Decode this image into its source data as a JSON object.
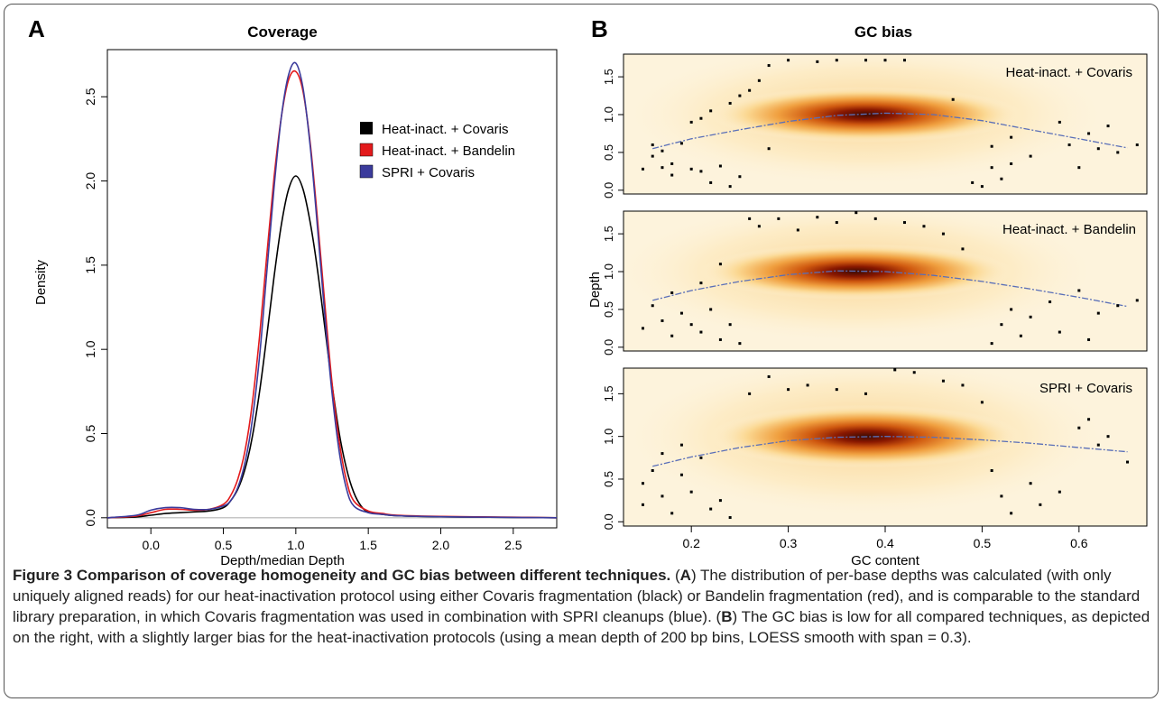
{
  "panel_a": {
    "label": "A",
    "title": "Coverage",
    "xlabel": "Depth/median Depth",
    "ylabel": "Density",
    "legend": [
      {
        "name": "Heat-inact. + Covaris",
        "color": "#000000"
      },
      {
        "name": "Heat-inact. + Bandelin",
        "color": "#e31a1c"
      },
      {
        "name": "SPRI + Covaris",
        "color": "#3b3b9c"
      }
    ]
  },
  "panel_b": {
    "label": "B",
    "title": "GC bias",
    "xlabel": "GC content",
    "ylabel": "Depth",
    "subplots": [
      {
        "label": "Heat-inact. + Covaris"
      },
      {
        "label": "Heat-inact. + Bandelin"
      },
      {
        "label": "SPRI + Covaris"
      }
    ]
  },
  "caption": {
    "fig_title": "Figure 3 Comparison of coverage homogeneity and GC bias between different techniques.",
    "open_a": "(",
    "a": "A",
    "text_a": ") The distribution of per-base depths was calculated (with only uniquely aligned reads) for our heat-inactivation protocol using either Covaris fragmentation (black) or Bandelin fragmentation (red), and is comparable to the standard library preparation, in which Covaris fragmentation was used in combination with SPRI cleanups (blue). (",
    "b": "B",
    "text_b": ") The GC bias is low for all compared techniques, as depicted on the right, with a slightly larger bias for the heat-inactivation protocols (using a mean depth of 200 bp bins, LOESS smooth with span = 0.3)."
  },
  "chart_data": [
    {
      "type": "line",
      "panel": "A",
      "title": "Coverage",
      "xlabel": "Depth/median Depth",
      "ylabel": "Density",
      "xlim": [
        -0.3,
        2.8
      ],
      "ylim": [
        0,
        2.7
      ],
      "xticks": [
        "0.0",
        "0.5",
        "1.0",
        "1.5",
        "2.0",
        "2.5"
      ],
      "yticks": [
        "0.0",
        "0.5",
        "1.0",
        "1.5",
        "2.0",
        "2.5"
      ],
      "legend_position": "top-right",
      "series": [
        {
          "name": "Heat-inact. + Covaris",
          "color": "#000000",
          "x": [
            -0.3,
            -0.1,
            0.0,
            0.1,
            0.2,
            0.3,
            0.4,
            0.5,
            0.55,
            0.6,
            0.65,
            0.7,
            0.75,
            0.8,
            0.85,
            0.9,
            0.95,
            1.0,
            1.05,
            1.1,
            1.15,
            1.2,
            1.25,
            1.3,
            1.35,
            1.4,
            1.45,
            1.5,
            1.6,
            1.7,
            2.0,
            2.5,
            2.8
          ],
          "y": [
            0.0,
            0.005,
            0.015,
            0.025,
            0.03,
            0.035,
            0.04,
            0.06,
            0.1,
            0.17,
            0.29,
            0.48,
            0.75,
            1.08,
            1.43,
            1.74,
            1.95,
            2.03,
            1.95,
            1.75,
            1.47,
            1.13,
            0.79,
            0.5,
            0.29,
            0.15,
            0.07,
            0.035,
            0.02,
            0.012,
            0.006,
            0.002,
            0.0
          ]
        },
        {
          "name": "Heat-inact. + Bandelin",
          "color": "#e31a1c",
          "x": [
            -0.3,
            -0.1,
            0.0,
            0.1,
            0.2,
            0.3,
            0.4,
            0.5,
            0.55,
            0.6,
            0.65,
            0.7,
            0.75,
            0.8,
            0.85,
            0.9,
            0.95,
            1.0,
            1.05,
            1.1,
            1.15,
            1.2,
            1.25,
            1.3,
            1.35,
            1.4,
            1.5,
            1.6,
            1.7,
            2.0,
            2.5,
            2.8
          ],
          "y": [
            0.0,
            0.01,
            0.03,
            0.05,
            0.05,
            0.045,
            0.05,
            0.08,
            0.13,
            0.23,
            0.4,
            0.68,
            1.08,
            1.56,
            2.02,
            2.38,
            2.6,
            2.65,
            2.53,
            2.22,
            1.77,
            1.27,
            0.8,
            0.45,
            0.22,
            0.1,
            0.04,
            0.025,
            0.015,
            0.008,
            0.003,
            0.0
          ]
        },
        {
          "name": "SPRI + Covaris",
          "color": "#3b3b9c",
          "x": [
            -0.3,
            -0.1,
            0.0,
            0.1,
            0.2,
            0.3,
            0.4,
            0.5,
            0.55,
            0.6,
            0.65,
            0.7,
            0.75,
            0.8,
            0.85,
            0.9,
            0.95,
            1.0,
            1.05,
            1.1,
            1.15,
            1.2,
            1.25,
            1.3,
            1.35,
            1.4,
            1.5,
            1.6,
            1.7,
            2.0,
            2.5,
            2.8
          ],
          "y": [
            0.0,
            0.015,
            0.045,
            0.06,
            0.06,
            0.05,
            0.05,
            0.07,
            0.1,
            0.18,
            0.33,
            0.58,
            0.96,
            1.46,
            1.96,
            2.38,
            2.63,
            2.7,
            2.55,
            2.2,
            1.72,
            1.2,
            0.74,
            0.39,
            0.17,
            0.07,
            0.03,
            0.02,
            0.012,
            0.006,
            0.002,
            0.0
          ]
        }
      ]
    },
    {
      "type": "scatter",
      "panel": "B",
      "title": "GC bias",
      "xlabel": "GC content",
      "ylabel": "Depth",
      "xlim": [
        0.13,
        0.67
      ],
      "ylim": [
        -0.05,
        1.8
      ],
      "xticks": [
        "0.2",
        "0.3",
        "0.4",
        "0.5",
        "0.6"
      ],
      "yticks": [
        "0.0",
        "0.5",
        "1.0",
        "1.5"
      ],
      "note": "smoothed density scatter (heat colormap) with LOESS trend line",
      "series": [
        {
          "name": "Heat-inact. + Covaris",
          "density_center": {
            "x": 0.38,
            "y": 1.0
          },
          "loess_x": [
            0.16,
            0.2,
            0.25,
            0.3,
            0.35,
            0.4,
            0.45,
            0.5,
            0.55,
            0.6,
            0.65
          ],
          "loess_y": [
            0.55,
            0.68,
            0.8,
            0.91,
            0.99,
            1.02,
            1.0,
            0.92,
            0.8,
            0.68,
            0.56
          ],
          "outliers": [
            [
              0.15,
              0.28
            ],
            [
              0.16,
              0.45
            ],
            [
              0.16,
              0.6
            ],
            [
              0.17,
              0.3
            ],
            [
              0.17,
              0.52
            ],
            [
              0.18,
              0.35
            ],
            [
              0.18,
              0.2
            ],
            [
              0.19,
              0.62
            ],
            [
              0.2,
              0.9
            ],
            [
              0.2,
              0.28
            ],
            [
              0.21,
              0.95
            ],
            [
              0.21,
              0.25
            ],
            [
              0.22,
              1.05
            ],
            [
              0.22,
              0.1
            ],
            [
              0.23,
              0.32
            ],
            [
              0.24,
              0.05
            ],
            [
              0.24,
              1.15
            ],
            [
              0.25,
              1.25
            ],
            [
              0.25,
              0.18
            ],
            [
              0.26,
              1.32
            ],
            [
              0.27,
              1.45
            ],
            [
              0.28,
              1.65
            ],
            [
              0.28,
              0.55
            ],
            [
              0.3,
              1.72
            ],
            [
              0.33,
              1.7
            ],
            [
              0.35,
              1.72
            ],
            [
              0.38,
              1.72
            ],
            [
              0.4,
              1.72
            ],
            [
              0.42,
              1.72
            ],
            [
              0.47,
              1.2
            ],
            [
              0.49,
              0.1
            ],
            [
              0.5,
              0.05
            ],
            [
              0.51,
              0.3
            ],
            [
              0.51,
              0.58
            ],
            [
              0.52,
              0.15
            ],
            [
              0.53,
              0.35
            ],
            [
              0.53,
              0.7
            ],
            [
              0.55,
              0.45
            ],
            [
              0.58,
              0.9
            ],
            [
              0.59,
              0.6
            ],
            [
              0.6,
              0.3
            ],
            [
              0.61,
              0.75
            ],
            [
              0.62,
              0.55
            ],
            [
              0.63,
              0.85
            ],
            [
              0.64,
              0.5
            ],
            [
              0.66,
              0.6
            ]
          ]
        },
        {
          "name": "Heat-inact. + Bandelin",
          "density_center": {
            "x": 0.37,
            "y": 1.0
          },
          "loess_x": [
            0.16,
            0.2,
            0.25,
            0.3,
            0.35,
            0.4,
            0.45,
            0.5,
            0.55,
            0.6,
            0.65
          ],
          "loess_y": [
            0.62,
            0.75,
            0.87,
            0.96,
            1.01,
            1.0,
            0.95,
            0.87,
            0.77,
            0.66,
            0.54
          ],
          "outliers": [
            [
              0.15,
              0.25
            ],
            [
              0.16,
              0.55
            ],
            [
              0.17,
              0.35
            ],
            [
              0.18,
              0.15
            ],
            [
              0.18,
              0.72
            ],
            [
              0.19,
              0.45
            ],
            [
              0.2,
              0.3
            ],
            [
              0.21,
              0.85
            ],
            [
              0.21,
              0.2
            ],
            [
              0.22,
              0.5
            ],
            [
              0.23,
              1.1
            ],
            [
              0.23,
              0.1
            ],
            [
              0.24,
              0.3
            ],
            [
              0.25,
              0.05
            ],
            [
              0.26,
              1.7
            ],
            [
              0.27,
              1.6
            ],
            [
              0.29,
              1.7
            ],
            [
              0.31,
              1.55
            ],
            [
              0.33,
              1.72
            ],
            [
              0.35,
              1.65
            ],
            [
              0.37,
              1.78
            ],
            [
              0.39,
              1.7
            ],
            [
              0.42,
              1.65
            ],
            [
              0.44,
              1.6
            ],
            [
              0.46,
              1.5
            ],
            [
              0.48,
              1.3
            ],
            [
              0.51,
              0.05
            ],
            [
              0.52,
              0.3
            ],
            [
              0.53,
              0.5
            ],
            [
              0.54,
              0.15
            ],
            [
              0.55,
              0.4
            ],
            [
              0.57,
              0.6
            ],
            [
              0.58,
              0.2
            ],
            [
              0.6,
              0.75
            ],
            [
              0.61,
              0.1
            ],
            [
              0.62,
              0.45
            ],
            [
              0.64,
              0.55
            ],
            [
              0.66,
              0.62
            ]
          ]
        },
        {
          "name": "SPRI + Covaris",
          "density_center": {
            "x": 0.38,
            "y": 1.0
          },
          "loess_x": [
            0.16,
            0.2,
            0.25,
            0.3,
            0.35,
            0.4,
            0.45,
            0.5,
            0.55,
            0.6,
            0.65
          ],
          "loess_y": [
            0.65,
            0.76,
            0.87,
            0.95,
            0.99,
            1.0,
            0.99,
            0.96,
            0.92,
            0.87,
            0.82
          ],
          "outliers": [
            [
              0.15,
              0.45
            ],
            [
              0.15,
              0.2
            ],
            [
              0.16,
              0.6
            ],
            [
              0.17,
              0.3
            ],
            [
              0.17,
              0.8
            ],
            [
              0.18,
              0.1
            ],
            [
              0.19,
              0.55
            ],
            [
              0.19,
              0.9
            ],
            [
              0.2,
              0.35
            ],
            [
              0.21,
              0.75
            ],
            [
              0.22,
              0.15
            ],
            [
              0.23,
              0.25
            ],
            [
              0.24,
              0.05
            ],
            [
              0.26,
              1.5
            ],
            [
              0.28,
              1.7
            ],
            [
              0.3,
              1.55
            ],
            [
              0.32,
              1.6
            ],
            [
              0.35,
              1.55
            ],
            [
              0.38,
              1.5
            ],
            [
              0.41,
              1.78
            ],
            [
              0.43,
              1.75
            ],
            [
              0.46,
              1.65
            ],
            [
              0.48,
              1.6
            ],
            [
              0.5,
              1.4
            ],
            [
              0.51,
              0.6
            ],
            [
              0.52,
              0.3
            ],
            [
              0.53,
              0.1
            ],
            [
              0.55,
              0.45
            ],
            [
              0.56,
              0.2
            ],
            [
              0.58,
              0.35
            ],
            [
              0.6,
              1.1
            ],
            [
              0.61,
              1.2
            ],
            [
              0.62,
              0.9
            ],
            [
              0.63,
              1.0
            ],
            [
              0.65,
              0.7
            ]
          ]
        }
      ]
    }
  ]
}
